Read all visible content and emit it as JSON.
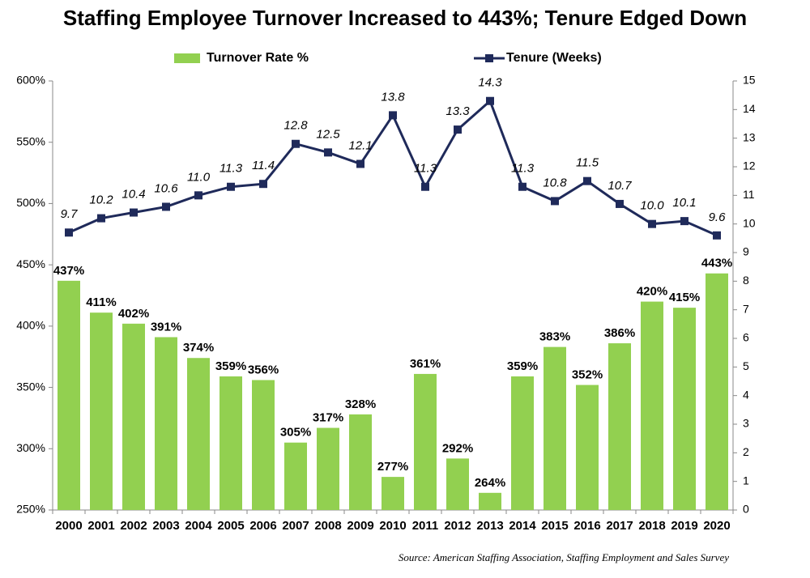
{
  "chart_data": {
    "type": "combo",
    "title": "Staffing Employee Turnover Increased to 443%; Tenure Edged Down",
    "source": "Source: American Staffing Association, Staffing Employment and Sales Survey",
    "categories": [
      "2000",
      "2001",
      "2002",
      "2003",
      "2004",
      "2005",
      "2006",
      "2007",
      "2008",
      "2009",
      "2010",
      "2011",
      "2012",
      "2013",
      "2014",
      "2015",
      "2016",
      "2017",
      "2018",
      "2019",
      "2020"
    ],
    "series": [
      {
        "name": "Turnover Rate %",
        "type": "bar",
        "color": "#92d050",
        "values": [
          437,
          411,
          402,
          391,
          374,
          359,
          356,
          305,
          317,
          328,
          277,
          361,
          292,
          264,
          359,
          383,
          352,
          386,
          420,
          415,
          443
        ],
        "value_labels": [
          "437%",
          "411%",
          "402%",
          "391%",
          "374%",
          "359%",
          "356%",
          "305%",
          "317%",
          "328%",
          "277%",
          "361%",
          "292%",
          "264%",
          "359%",
          "383%",
          "352%",
          "386%",
          "420%",
          "415%",
          "443%"
        ]
      },
      {
        "name": "Tenure (Weeks)",
        "type": "line",
        "axis": "y2",
        "color": "#1f2a5a",
        "values": [
          9.7,
          10.2,
          10.4,
          10.6,
          11.0,
          11.3,
          11.4,
          12.8,
          12.5,
          12.1,
          13.8,
          11.3,
          13.3,
          14.3,
          11.3,
          10.8,
          11.5,
          10.7,
          10.0,
          10.1,
          9.6
        ],
        "value_labels": [
          "9.7",
          "10.2",
          "10.4",
          "10.6",
          "11.0",
          "11.3",
          "11.4",
          "12.8",
          "12.5",
          "12.1",
          "13.8",
          "11.3",
          "13.3",
          "14.3",
          "11.3",
          "10.8",
          "11.5",
          "10.7",
          "10.0",
          "10.1",
          "9.6"
        ]
      }
    ],
    "ylim": [
      250,
      600
    ],
    "yticks": [
      {
        "value": 250,
        "label": "250%"
      },
      {
        "value": 300,
        "label": "300%"
      },
      {
        "value": 350,
        "label": "350%"
      },
      {
        "value": 400,
        "label": "400%"
      },
      {
        "value": 450,
        "label": "450%"
      },
      {
        "value": 500,
        "label": "500%"
      },
      {
        "value": 550,
        "label": "550%"
      },
      {
        "value": 600,
        "label": "600%"
      }
    ],
    "y2lim": [
      0,
      15
    ],
    "y2ticks": [
      0,
      1,
      2,
      3,
      4,
      5,
      6,
      7,
      8,
      9,
      10,
      11,
      12,
      13,
      14,
      15
    ],
    "grid": false
  }
}
